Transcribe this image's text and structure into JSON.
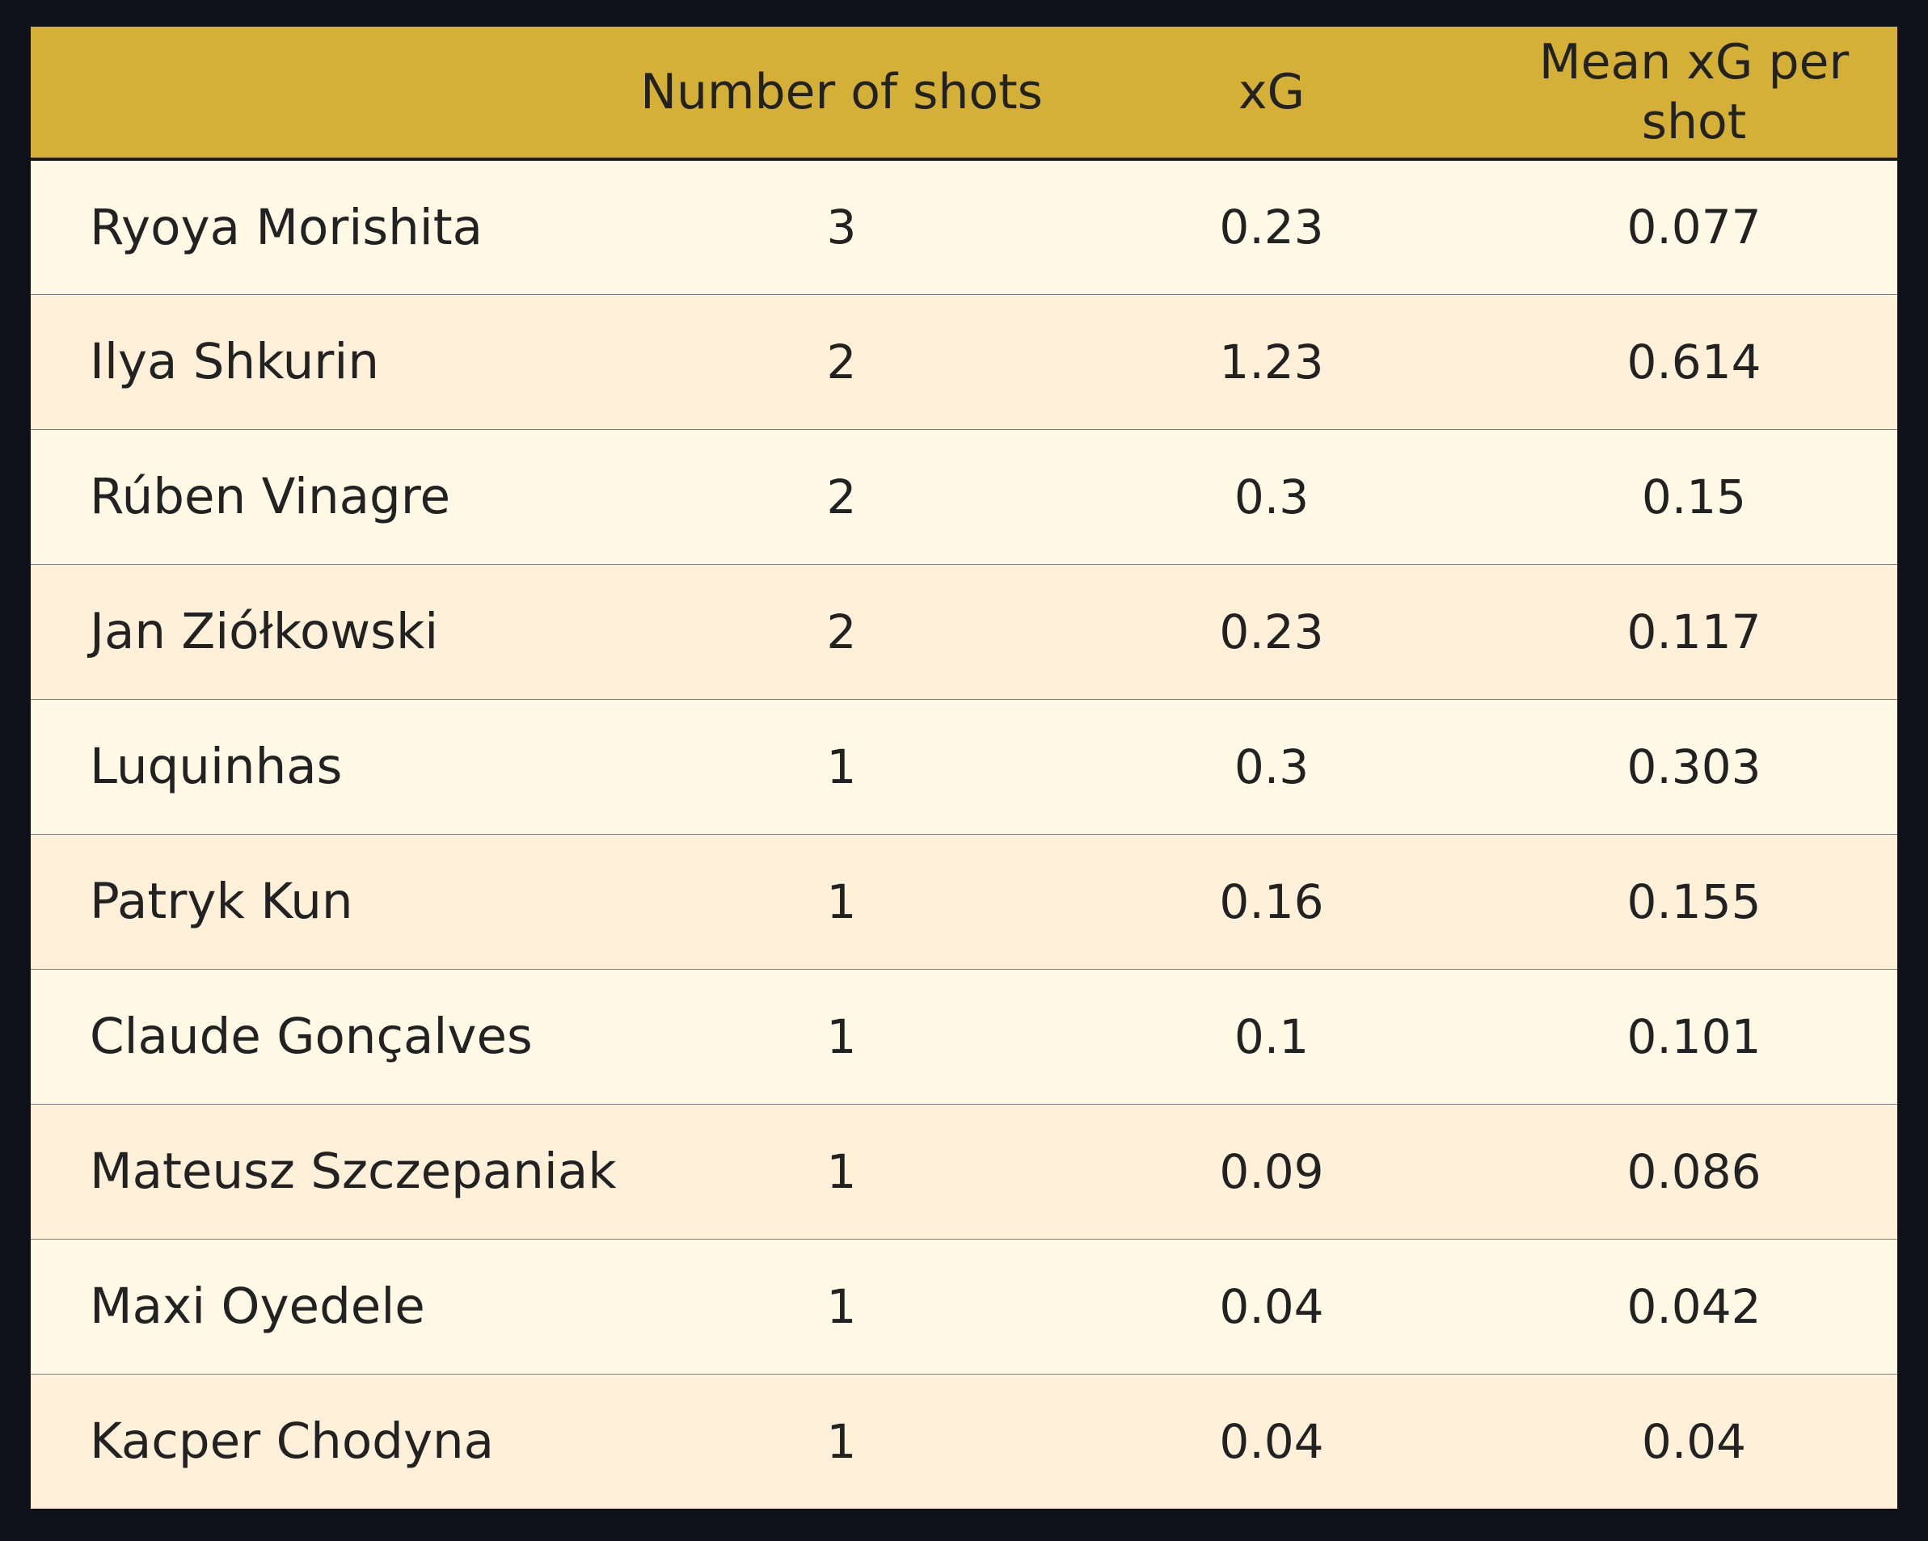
{
  "chart_data": {
    "type": "table",
    "columns": [
      "",
      "Number of shots",
      "xG",
      "Mean xG per shot"
    ],
    "rows": [
      {
        "player": "Ryoya Morishita",
        "shots": "3",
        "xg": "0.23",
        "mean_xg": "0.077"
      },
      {
        "player": "Ilya Shkurin",
        "shots": "2",
        "xg": "1.23",
        "mean_xg": "0.614"
      },
      {
        "player": "Rúben Vinagre",
        "shots": "2",
        "xg": "0.3",
        "mean_xg": "0.15"
      },
      {
        "player": "Jan Ziółkowski",
        "shots": "2",
        "xg": "0.23",
        "mean_xg": "0.117"
      },
      {
        "player": "Luquinhas",
        "shots": "1",
        "xg": "0.3",
        "mean_xg": "0.303"
      },
      {
        "player": "Patryk Kun",
        "shots": "1",
        "xg": "0.16",
        "mean_xg": "0.155"
      },
      {
        "player": "Claude Gonçalves",
        "shots": "1",
        "xg": "0.1",
        "mean_xg": "0.101"
      },
      {
        "player": "Mateusz Szczepaniak",
        "shots": "1",
        "xg": "0.09",
        "mean_xg": "0.086"
      },
      {
        "player": "Maxi Oyedele",
        "shots": "1",
        "xg": "0.04",
        "mean_xg": "0.042"
      },
      {
        "player": "Kacper Chodyna",
        "shots": "1",
        "xg": "0.04",
        "mean_xg": "0.04"
      }
    ]
  },
  "colors": {
    "background": "#0e111a",
    "header": "#d4b036",
    "row_light": "#fff9e6",
    "row_alt": "#fff1d9",
    "text": "#222222"
  }
}
